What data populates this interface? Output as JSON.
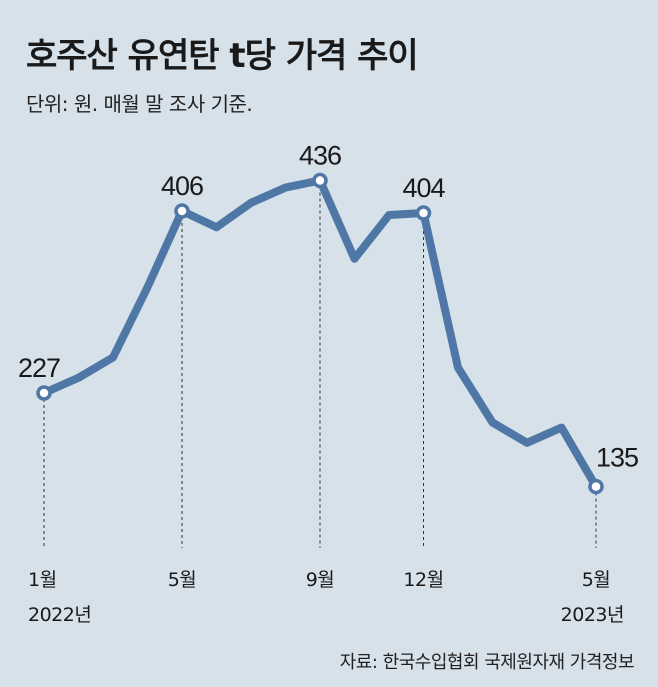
{
  "chart_data": {
    "type": "line",
    "title": "호주산 유연탄 t당 가격 추이",
    "subtitle": "단위: 원. 매월 말 조사 기준.",
    "source": "자료: 한국수입협회 국제원자재 가격정보",
    "x": [
      "2022-01",
      "2022-02",
      "2022-03",
      "2022-04",
      "2022-05",
      "2022-06",
      "2022-07",
      "2022-08",
      "2022-09",
      "2022-10",
      "2022-11",
      "2022-12",
      "2023-01",
      "2023-02",
      "2023-03",
      "2023-04",
      "2023-05"
    ],
    "values": [
      227,
      242,
      262,
      331,
      406,
      390,
      414,
      429,
      436,
      359,
      402,
      404,
      252,
      198,
      178,
      193,
      135
    ],
    "labeled_points": [
      {
        "index": 0,
        "label": "227",
        "tick": "1월",
        "year": "2022년"
      },
      {
        "index": 4,
        "label": "406",
        "tick": "5월"
      },
      {
        "index": 8,
        "label": "436",
        "tick": "9월"
      },
      {
        "index": 11,
        "label": "404",
        "tick": "12월"
      },
      {
        "index": 16,
        "label": "135",
        "tick": "5월",
        "year": "2023년"
      }
    ],
    "ylim": [
      100,
      460
    ],
    "grid": false,
    "color": "#4f77a6"
  }
}
